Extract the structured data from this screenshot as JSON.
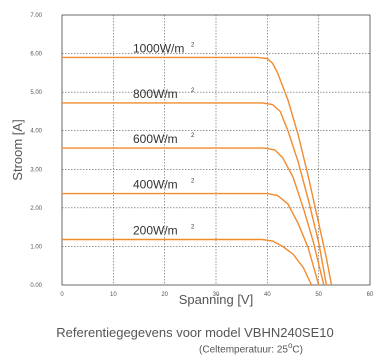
{
  "chart_data": {
    "type": "line",
    "xlabel": "Spanning [V]",
    "ylabel": "Stroom [A]",
    "xlim": [
      0,
      60
    ],
    "ylim": [
      0,
      7
    ],
    "x_ticks": [
      "0",
      "10",
      "20",
      "30",
      "40",
      "50",
      "60"
    ],
    "y_ticks": [
      "0.00",
      "1.00",
      "2.00",
      "3.00",
      "4.00",
      "5.00",
      "6.00",
      "7.00"
    ],
    "grid": "dotted",
    "series": [
      {
        "name": "1000W/m",
        "superscript": "2",
        "color": "#f28a2e",
        "points": [
          [
            0,
            5.9
          ],
          [
            38,
            5.9
          ],
          [
            40,
            5.87
          ],
          [
            41,
            5.75
          ],
          [
            42,
            5.5
          ],
          [
            44,
            4.8
          ],
          [
            46,
            3.9
          ],
          [
            48,
            2.8
          ],
          [
            50,
            1.6
          ],
          [
            51.5,
            0.7
          ],
          [
            52.5,
            0
          ]
        ]
      },
      {
        "name": "800W/m",
        "superscript": "2",
        "color": "#f28a2e",
        "points": [
          [
            0,
            4.72
          ],
          [
            39,
            4.72
          ],
          [
            41,
            4.68
          ],
          [
            42.5,
            4.5
          ],
          [
            44,
            4.0
          ],
          [
            46,
            3.2
          ],
          [
            48,
            2.2
          ],
          [
            50,
            1.1
          ],
          [
            51.5,
            0
          ]
        ]
      },
      {
        "name": "600W/m",
        "superscript": "2",
        "color": "#f28a2e",
        "points": [
          [
            0,
            3.55
          ],
          [
            39.5,
            3.55
          ],
          [
            41.5,
            3.5
          ],
          [
            43,
            3.3
          ],
          [
            45,
            2.8
          ],
          [
            47,
            2.0
          ],
          [
            49,
            1.1
          ],
          [
            51,
            0
          ]
        ]
      },
      {
        "name": "400W/m",
        "superscript": "2",
        "color": "#f28a2e",
        "points": [
          [
            0,
            2.37
          ],
          [
            40,
            2.37
          ],
          [
            42,
            2.32
          ],
          [
            44,
            2.1
          ],
          [
            46,
            1.6
          ],
          [
            48,
            0.95
          ],
          [
            50,
            0
          ]
        ]
      },
      {
        "name": "200W/m",
        "superscript": "2",
        "color": "#f28a2e",
        "points": [
          [
            0,
            1.18
          ],
          [
            39,
            1.18
          ],
          [
            41,
            1.14
          ],
          [
            43,
            1.0
          ],
          [
            45,
            0.8
          ],
          [
            47,
            0.45
          ],
          [
            48.6,
            0
          ]
        ]
      }
    ]
  },
  "caption": {
    "main": "Referentiegegevens voor model VBHN240SE10",
    "sub": "(Celtemperatuur: 25",
    "sub_degree": "o",
    "sub_end": "C)"
  }
}
